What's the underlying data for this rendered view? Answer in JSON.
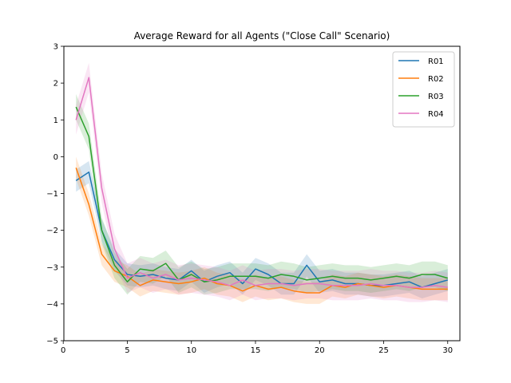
{
  "chart_data": {
    "type": "line",
    "title": "Average Reward for all Agents (\"Close Call\" Scenario)",
    "xlabel": "",
    "ylabel": "",
    "xlim": [
      0.05,
      30.95
    ],
    "ylim": [
      -5,
      3
    ],
    "xticks": [
      0,
      5,
      10,
      15,
      20,
      25,
      30
    ],
    "yticks": [
      -5,
      -4,
      -3,
      -2,
      -1,
      0,
      1,
      2,
      3
    ],
    "grid": false,
    "legend": "top-right",
    "x": [
      1,
      2,
      3,
      4,
      5,
      6,
      7,
      8,
      9,
      10,
      11,
      12,
      13,
      14,
      15,
      16,
      17,
      18,
      19,
      20,
      21,
      22,
      23,
      24,
      25,
      26,
      27,
      28,
      29,
      30
    ],
    "series": [
      {
        "name": "R01",
        "color": "#1f77b4",
        "values": [
          -0.65,
          -0.42,
          -2.0,
          -2.8,
          -3.2,
          -3.25,
          -3.2,
          -3.3,
          -3.35,
          -3.1,
          -3.4,
          -3.25,
          -3.15,
          -3.45,
          -3.05,
          -3.2,
          -3.45,
          -3.45,
          -2.95,
          -3.4,
          -3.35,
          -3.45,
          -3.45,
          -3.5,
          -3.5,
          -3.45,
          -3.4,
          -3.55,
          -3.45,
          -3.35
        ],
        "band": 0.3
      },
      {
        "name": "R02",
        "color": "#ff7f0e",
        "values": [
          -0.3,
          -1.3,
          -2.65,
          -3.1,
          -3.25,
          -3.5,
          -3.35,
          -3.4,
          -3.45,
          -3.4,
          -3.3,
          -3.45,
          -3.5,
          -3.65,
          -3.5,
          -3.6,
          -3.55,
          -3.65,
          -3.7,
          -3.7,
          -3.5,
          -3.55,
          -3.45,
          -3.5,
          -3.55,
          -3.5,
          -3.55,
          -3.6,
          -3.6,
          -3.6
        ],
        "band": 0.3
      },
      {
        "name": "R03",
        "color": "#2ca02c",
        "values": [
          1.35,
          0.55,
          -2.0,
          -2.95,
          -3.4,
          -3.05,
          -3.1,
          -2.9,
          -3.35,
          -3.2,
          -3.4,
          -3.35,
          -3.25,
          -3.25,
          -3.25,
          -3.3,
          -3.2,
          -3.25,
          -3.35,
          -3.3,
          -3.25,
          -3.3,
          -3.3,
          -3.35,
          -3.3,
          -3.25,
          -3.3,
          -3.2,
          -3.2,
          -3.3
        ],
        "band": 0.35
      },
      {
        "name": "R04",
        "color": "#e377c2",
        "values": [
          1.0,
          2.15,
          -0.85,
          -2.5,
          -3.3,
          -3.15,
          -3.3,
          -3.2,
          -3.35,
          -3.3,
          -3.35,
          -3.4,
          -3.5,
          -3.35,
          -3.5,
          -3.45,
          -3.45,
          -3.5,
          -3.45,
          -3.45,
          -3.5,
          -3.5,
          -3.5,
          -3.45,
          -3.5,
          -3.5,
          -3.55,
          -3.55,
          -3.5,
          -3.55
        ],
        "band": 0.4
      }
    ]
  }
}
